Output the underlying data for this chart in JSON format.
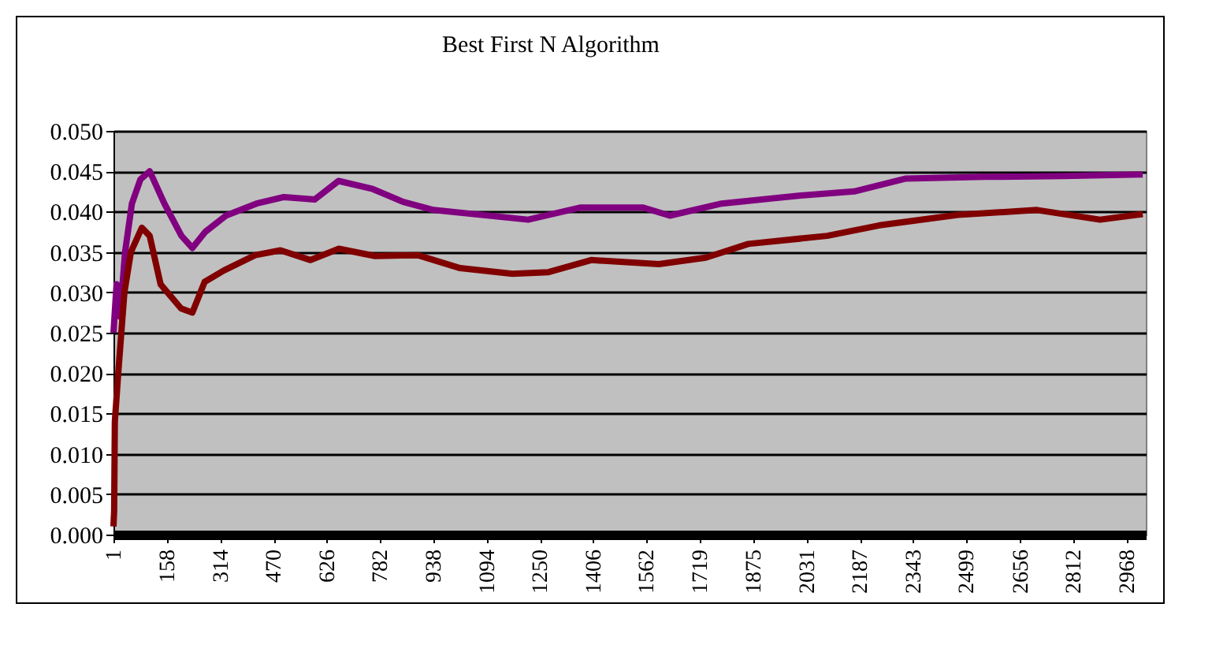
{
  "chart_data": {
    "type": "line",
    "title": "Best First N Algorithm",
    "xlim": [
      1,
      3024
    ],
    "xticks": [
      1,
      158,
      314,
      470,
      626,
      782,
      938,
      {
        "value": 1094,
        "label": "1094"
      },
      {
        "value": 1250,
        "label": "1250"
      },
      {
        "value": 1406,
        "label": "1406"
      },
      {
        "value": 1562,
        "label": "1562"
      },
      {
        "value": 1719,
        "label": "1719"
      },
      {
        "value": 1875,
        "label": "1875"
      },
      {
        "value": 2031,
        "label": "2031"
      },
      {
        "value": 2187,
        "label": "2187"
      },
      {
        "value": 2343,
        "label": "2343"
      },
      {
        "value": 2499,
        "label": "2499"
      },
      {
        "value": 2656,
        "label": "2656"
      },
      {
        "value": 2812,
        "label": "2812"
      },
      {
        "value": 2968,
        "label": "2968"
      }
    ],
    "ylim": [
      0,
      0.05
    ],
    "yticks": [
      {
        "value": 0,
        "label": "0.000"
      },
      {
        "value": 0.005,
        "label": "0.005"
      },
      {
        "value": 0.01,
        "label": "0.010"
      },
      {
        "value": 0.015,
        "label": "0.015"
      },
      {
        "value": 0.02,
        "label": "0.020"
      },
      {
        "value": 0.025,
        "label": "0.025"
      },
      {
        "value": 0.03,
        "label": "0.030"
      },
      {
        "value": 0.035,
        "label": "0.035"
      },
      {
        "value": 0.04,
        "label": "0.040"
      },
      {
        "value": 0.045,
        "label": "0.045"
      },
      {
        "value": 0.05,
        "label": "0.050"
      }
    ],
    "grid": "y",
    "legend": false,
    "series": [
      {
        "color": "#800080",
        "x": [
          1,
          10,
          20,
          35,
          55,
          80,
          107,
          150,
          200,
          232,
          270,
          330,
          420,
          500,
          590,
          660,
          760,
          850,
          938,
          1215,
          1367,
          1552,
          1630,
          1782,
          2013,
          2170,
          2322,
          2553,
          2784,
          3015
        ],
        "values": [
          0.025,
          0.031,
          0.027,
          0.035,
          0.041,
          0.044,
          0.045,
          0.041,
          0.037,
          0.0355,
          0.0375,
          0.0395,
          0.041,
          0.0418,
          0.0415,
          0.0438,
          0.0428,
          0.0412,
          0.0402,
          0.039,
          0.0405,
          0.0405,
          0.0395,
          0.041,
          0.042,
          0.0425,
          0.0441,
          0.0443,
          0.0444,
          0.0446
        ]
      },
      {
        "color": "#800000",
        "x": [
          1,
          3,
          5,
          15,
          33,
          52,
          84,
          107,
          139,
          199,
          232,
          268,
          324,
          416,
          490,
          578,
          661,
          767,
          892,
          1016,
          1169,
          1275,
          1400,
          1598,
          1736,
          1860,
          2091,
          2244,
          2474,
          2705,
          2890,
          3015
        ],
        "values": [
          0.001,
          0.003,
          0.014,
          0.02,
          0.03,
          0.035,
          0.038,
          0.037,
          0.031,
          0.028,
          0.0275,
          0.0313,
          0.0327,
          0.0346,
          0.0352,
          0.034,
          0.0354,
          0.0345,
          0.0346,
          0.033,
          0.0323,
          0.0325,
          0.034,
          0.0335,
          0.0343,
          0.036,
          0.037,
          0.0383,
          0.0396,
          0.0402,
          0.039,
          0.0397
        ]
      }
    ]
  }
}
